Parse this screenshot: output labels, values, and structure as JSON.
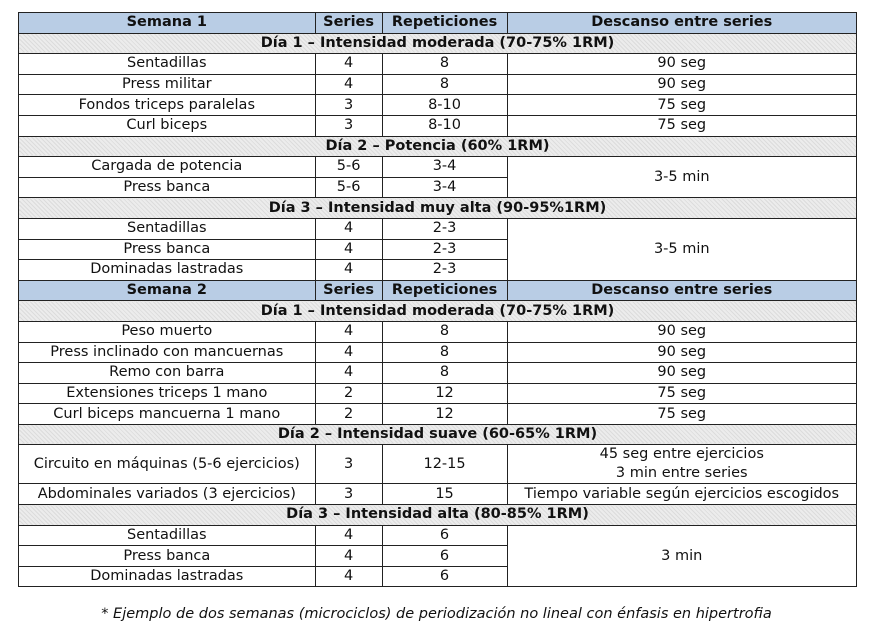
{
  "weeks": [
    {
      "header": {
        "title": "Semana 1",
        "series": "Series",
        "reps": "Repeticiones",
        "rest": "Descanso entre series"
      },
      "days": [
        {
          "title": "Día 1 – Intensidad moderada (70-75% 1RM)",
          "exercises": [
            {
              "name": "Sentadillas",
              "series": "4",
              "reps": "8",
              "rest": "90 seg"
            },
            {
              "name": "Press militar",
              "series": "4",
              "reps": "8",
              "rest": "90 seg"
            },
            {
              "name": "Fondos triceps paralelas",
              "series": "3",
              "reps": "8-10",
              "rest": "75 seg"
            },
            {
              "name": "Curl biceps",
              "series": "3",
              "reps": "8-10",
              "rest": "75 seg"
            }
          ]
        },
        {
          "title": "Día 2 – Potencia (60% 1RM)",
          "rest": "3-5 min",
          "exercises": [
            {
              "name": "Cargada de potencia",
              "series": "5-6",
              "reps": "3-4"
            },
            {
              "name": "Press banca",
              "series": "5-6",
              "reps": "3-4"
            }
          ]
        },
        {
          "title": "Día 3 – Intensidad muy alta (90-95%1RM)",
          "rest": "3-5 min",
          "exercises": [
            {
              "name": "Sentadillas",
              "series": "4",
              "reps": "2-3"
            },
            {
              "name": "Press banca",
              "series": "4",
              "reps": "2-3"
            },
            {
              "name": "Dominadas lastradas",
              "series": "4",
              "reps": "2-3"
            }
          ]
        }
      ]
    },
    {
      "header": {
        "title": "Semana 2",
        "series": "Series",
        "reps": "Repeticiones",
        "rest": "Descanso entre series"
      },
      "days": [
        {
          "title": "Día 1 – Intensidad moderada (70-75% 1RM)",
          "exercises": [
            {
              "name": "Peso muerto",
              "series": "4",
              "reps": "8",
              "rest": "90 seg"
            },
            {
              "name": "Press inclinado con mancuernas",
              "series": "4",
              "reps": "8",
              "rest": "90 seg"
            },
            {
              "name": "Remo con barra",
              "series": "4",
              "reps": "8",
              "rest": "90 seg"
            },
            {
              "name": "Extensiones triceps 1 mano",
              "series": "2",
              "reps": "12",
              "rest": "75 seg"
            },
            {
              "name": "Curl biceps mancuerna 1 mano",
              "series": "2",
              "reps": "12",
              "rest": "75 seg"
            }
          ]
        },
        {
          "title": "Día 2 – Intensidad suave (60-65% 1RM)",
          "exercises": [
            {
              "name": "Circuito en máquinas (5-6 ejercicios)",
              "series": "3",
              "reps": "12-15",
              "rest": "45 seg entre ejercicios\n3 min entre series"
            },
            {
              "name": "Abdominales variados (3 ejercicios)",
              "series": "3",
              "reps": "15",
              "rest": "Tiempo variable según ejercicios escogidos"
            }
          ]
        },
        {
          "title": "Día 3 – Intensidad alta (80-85% 1RM)",
          "rest": "3 min",
          "exercises": [
            {
              "name": "Sentadillas",
              "series": "4",
              "reps": "6"
            },
            {
              "name": "Press banca",
              "series": "4",
              "reps": "6"
            },
            {
              "name": "Dominadas lastradas",
              "series": "4",
              "reps": "6"
            }
          ]
        }
      ]
    }
  ],
  "caption": "* Ejemplo de dos semanas (microciclos) de periodización no lineal con énfasis en hipertrofia"
}
